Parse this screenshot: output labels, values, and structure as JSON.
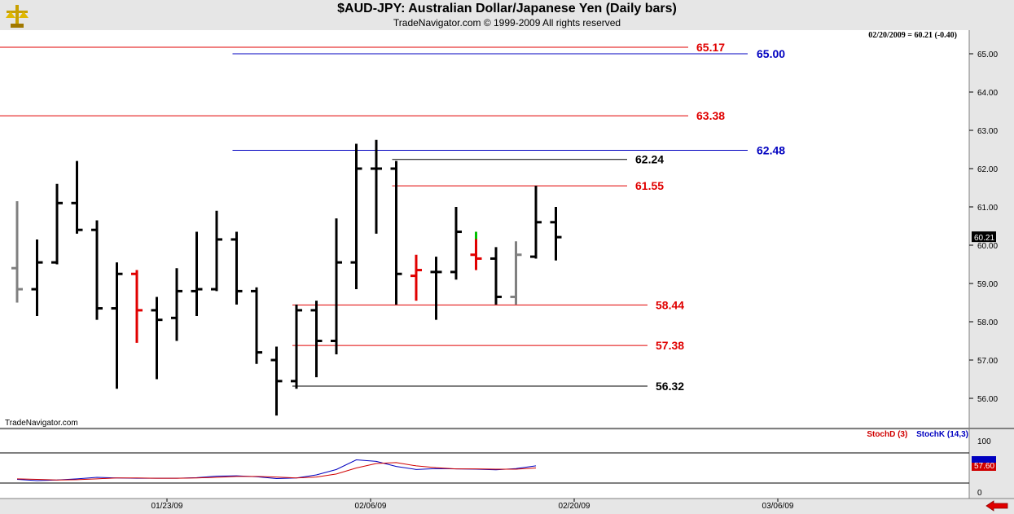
{
  "header": {
    "title": "$AUD-JPY:  Australian Dollar/Japanese Yen  (Daily bars)",
    "subtitle": "TradeNavigator.com © 1999-2009 All rights reserved"
  },
  "info_line": "02/20/2009 = 60.21 (-0.40)",
  "watermark": "TradeNavigator.com",
  "oscillator_legend": {
    "stochD": "StochD (3)",
    "stochK": "StochK (14,3)"
  },
  "colors": {
    "bar_default": "#000000",
    "bar_red": "#e00000",
    "bar_gray": "#808080",
    "bar_green": "#00c000",
    "red_level": "#e00000",
    "blue_level": "#0000c0",
    "black_level": "#000000",
    "stoch_k": "#0000c0",
    "stoch_d": "#d00000"
  },
  "chart_data": [
    {
      "type": "ohlc",
      "title": "$AUD-JPY:  Australian Dollar/Japanese Yen  (Daily bars)",
      "ylim": [
        55.5,
        65.5
      ],
      "y_ticks": [
        "56.00",
        "57.00",
        "58.00",
        "59.00",
        "60.00",
        "61.00",
        "62.00",
        "63.00",
        "64.00",
        "65.00"
      ],
      "last_value_label": "60.21",
      "x_tick_labels": [
        "01/23/09",
        "02/06/09",
        "02/20/09",
        "03/06/09"
      ],
      "bars": [
        {
          "o": 59.4,
          "h": 61.15,
          "l": 58.5,
          "c": 58.85,
          "color": "gray"
        },
        {
          "o": 58.85,
          "h": 60.15,
          "l": 58.15,
          "c": 59.55,
          "color": "black"
        },
        {
          "o": 59.55,
          "h": 61.6,
          "l": 59.5,
          "c": 61.1,
          "color": "black"
        },
        {
          "o": 61.1,
          "h": 62.2,
          "l": 60.3,
          "c": 60.4,
          "color": "black"
        },
        {
          "o": 60.4,
          "h": 60.65,
          "l": 58.05,
          "c": 58.35,
          "color": "black"
        },
        {
          "o": 58.35,
          "h": 59.55,
          "l": 56.25,
          "c": 59.25,
          "color": "black"
        },
        {
          "o": 59.25,
          "h": 59.35,
          "l": 57.45,
          "c": 58.3,
          "color": "red"
        },
        {
          "o": 58.3,
          "h": 58.65,
          "l": 56.5,
          "c": 58.05,
          "color": "black"
        },
        {
          "o": 58.1,
          "h": 59.4,
          "l": 57.5,
          "c": 58.8,
          "color": "black"
        },
        {
          "o": 58.8,
          "h": 60.35,
          "l": 58.15,
          "c": 58.85,
          "color": "black"
        },
        {
          "o": 58.85,
          "h": 60.9,
          "l": 58.8,
          "c": 60.15,
          "color": "black"
        },
        {
          "o": 60.15,
          "h": 60.35,
          "l": 58.45,
          "c": 58.8,
          "color": "black"
        },
        {
          "o": 58.8,
          "h": 58.9,
          "l": 56.9,
          "c": 57.2,
          "color": "black"
        },
        {
          "o": 57.0,
          "h": 57.35,
          "l": 55.55,
          "c": 56.45,
          "color": "black"
        },
        {
          "o": 56.45,
          "h": 58.45,
          "l": 56.25,
          "c": 58.3,
          "color": "black"
        },
        {
          "o": 58.3,
          "h": 58.55,
          "l": 56.55,
          "c": 57.5,
          "color": "black"
        },
        {
          "o": 57.5,
          "h": 60.7,
          "l": 57.15,
          "c": 59.55,
          "color": "black"
        },
        {
          "o": 59.55,
          "h": 62.65,
          "l": 58.85,
          "c": 62.0,
          "color": "black"
        },
        {
          "o": 62.0,
          "h": 62.75,
          "l": 60.3,
          "c": 62.0,
          "color": "black"
        },
        {
          "o": 62.0,
          "h": 62.2,
          "l": 58.45,
          "c": 59.25,
          "color": "black"
        },
        {
          "o": 59.2,
          "h": 59.75,
          "l": 58.55,
          "c": 59.35,
          "color": "red"
        },
        {
          "o": 59.3,
          "h": 59.7,
          "l": 58.05,
          "c": 59.3,
          "color": "black"
        },
        {
          "o": 59.3,
          "h": 61.0,
          "l": 59.1,
          "c": 60.35,
          "color": "black"
        },
        {
          "o": 59.75,
          "h": 60.35,
          "l": 59.35,
          "c": 59.65,
          "color": "red",
          "top_color": "green"
        },
        {
          "o": 59.65,
          "h": 59.95,
          "l": 58.45,
          "c": 58.65,
          "color": "black"
        },
        {
          "o": 58.65,
          "h": 60.1,
          "l": 58.45,
          "c": 59.75,
          "color": "gray"
        },
        {
          "o": 59.7,
          "h": 61.55,
          "l": 59.65,
          "c": 60.6,
          "color": "black"
        },
        {
          "o": 60.6,
          "h": 61.0,
          "l": 59.6,
          "c": 60.21,
          "color": "black"
        }
      ],
      "levels": [
        {
          "value": 65.17,
          "label": "65.17",
          "color": "red",
          "start_bar": 0
        },
        {
          "value": 65.0,
          "label": "65.00",
          "color": "blue",
          "start_bar": 11
        },
        {
          "value": 63.38,
          "label": "63.38",
          "color": "red",
          "start_bar": 0
        },
        {
          "value": 62.48,
          "label": "62.48",
          "color": "blue",
          "start_bar": 11
        },
        {
          "value": 62.24,
          "label": "62.24",
          "color": "black",
          "start_bar": 19
        },
        {
          "value": 61.55,
          "label": "61.55",
          "color": "red",
          "start_bar": 19
        },
        {
          "value": 58.44,
          "label": "58.44",
          "color": "red",
          "start_bar": 14
        },
        {
          "value": 57.38,
          "label": "57.38",
          "color": "red",
          "start_bar": 14
        },
        {
          "value": 56.32,
          "label": "56.32",
          "color": "black",
          "start_bar": 14
        }
      ]
    },
    {
      "type": "line",
      "title": "",
      "ylim": [
        0,
        100
      ],
      "y_ticks": [
        "100",
        "0"
      ],
      "last_value_label": "57.60",
      "series": [
        {
          "name": "StochK (14,3)",
          "color": "blue",
          "values": [
            12,
            8,
            10,
            14,
            19,
            17,
            16,
            16,
            16,
            18,
            23,
            24,
            21,
            15,
            17,
            27,
            45,
            77,
            72,
            55,
            45,
            48,
            47,
            46,
            44,
            48,
            57
          ]
        },
        {
          "name": "StochD (3)",
          "color": "red",
          "values": [
            14,
            12,
            10,
            11,
            14,
            17,
            17,
            16,
            16,
            17,
            19,
            22,
            22,
            20,
            17,
            20,
            30,
            50,
            65,
            68,
            57,
            51,
            47,
            47,
            46,
            46,
            50
          ]
        }
      ]
    }
  ]
}
